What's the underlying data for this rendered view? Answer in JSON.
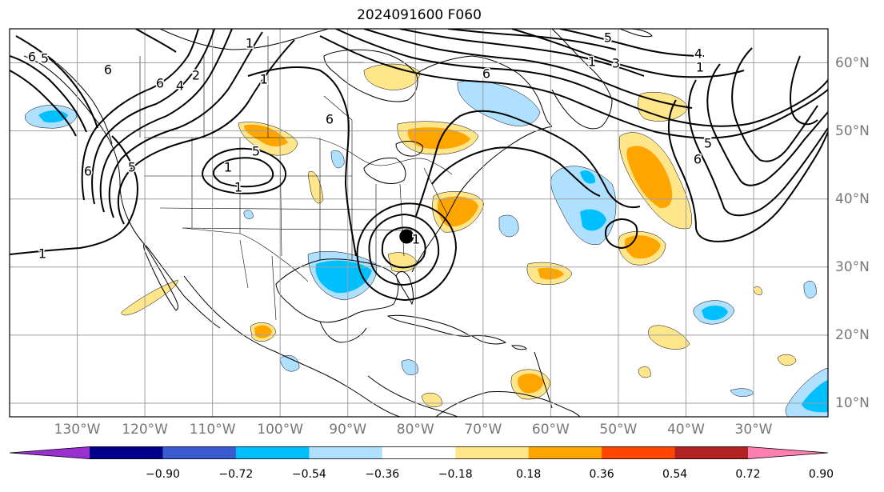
{
  "title": "2024091600 F060",
  "map": {
    "projection": "PlateCarree",
    "lon_range": [
      -140,
      -19
    ],
    "lat_range": [
      8,
      65
    ],
    "grid": true,
    "longitude_labels": [
      "130°W",
      "120°W",
      "110°W",
      "100°W",
      "90°W",
      "80°W",
      "70°W",
      "60°W",
      "50°W",
      "40°W",
      "30°W"
    ],
    "latitude_labels": [
      "60°N",
      "50°N",
      "40°N",
      "30°N",
      "20°N",
      "10°N"
    ],
    "storm_marker": {
      "lon": -81.3,
      "lat": 34.5
    },
    "contour_labels": [
      "6",
      "5",
      "1",
      "6",
      "4",
      "2",
      "1",
      "1",
      "6",
      "1",
      "6",
      "3",
      "1",
      "5",
      "1",
      "4",
      "5",
      "6",
      "5",
      "6",
      "1",
      "1",
      "5",
      "6"
    ],
    "colors": {
      "neg_090": "#9b30d0",
      "neg_072": "#00008b",
      "neg_054": "#3a5bd0",
      "neg_036": "#00bfff",
      "neg_018": "#b0e0ff",
      "neutral": "#ffffff",
      "pos_018": "#ffe68a",
      "pos_036": "#ffa500",
      "pos_054": "#ff4500",
      "pos_072": "#b22222",
      "pos_090": "#ff7fb0",
      "contour": "#000000",
      "coast": "#000000",
      "grid": "#a0a0a0"
    }
  },
  "colorbar": {
    "ticks": [
      "−0.90",
      "−0.72",
      "−0.54",
      "−0.36",
      "−0.18",
      "0.18",
      "0.36",
      "0.54",
      "0.72",
      "0.90"
    ],
    "segments": [
      "#9b30d0",
      "#00008b",
      "#3a5bd0",
      "#00bfff",
      "#b0e0ff",
      "#ffffff",
      "#ffe68a",
      "#ffa500",
      "#ff4500",
      "#b22222",
      "#ff7fb0"
    ],
    "extend": "both"
  }
}
